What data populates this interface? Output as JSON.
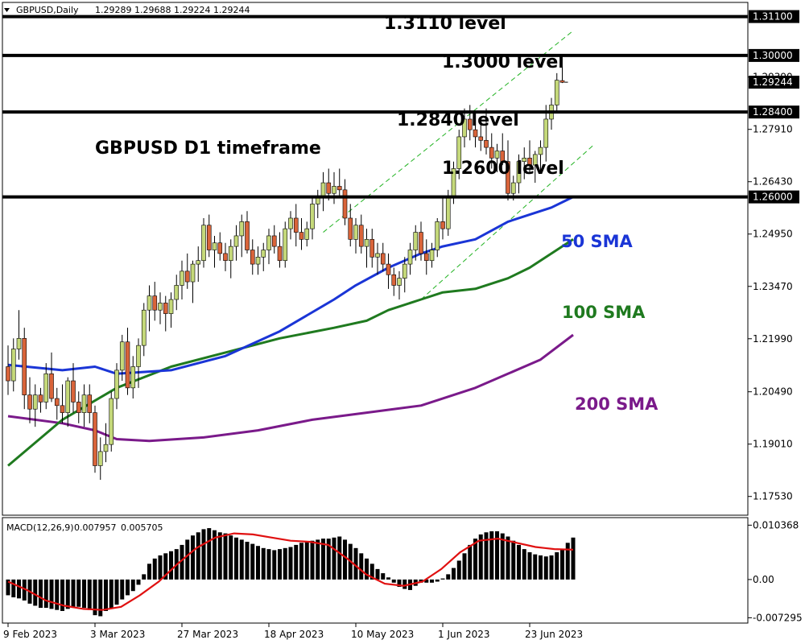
{
  "chart_header": {
    "symbol_label": "GBPUSD,Daily",
    "ohlc": "1.29289 1.29688 1.29224 1.29244"
  },
  "macd_header": {
    "label": "MACD(12,26,9)",
    "main": "0.007957",
    "signal": "0.005705"
  },
  "annotations": {
    "title": "GBPUSD D1 timeframe",
    "level_13110": "1.3110 level",
    "level_13000": "1.3000 level",
    "level_12840": "1.2840 level",
    "level_12600": "1.2600 level",
    "sma50": "50 SMA",
    "sma100": "100 SMA",
    "sma200": "200 SMA"
  },
  "colors": {
    "bull_candle": "#c5d97a",
    "bear_candle": "#d9643a",
    "sma50": "#1a35d6",
    "sma100": "#1f7a1f",
    "sma200": "#7a1a8a",
    "macd_signal": "#e01010",
    "channel": "#22b322"
  },
  "chart_data": {
    "type": "candlestick",
    "price_axis": {
      "ylim": [
        1.17,
        1.315
      ],
      "ticks": [
        "1.17530",
        "1.19010",
        "1.20490",
        "1.21990",
        "1.23470",
        "1.24950",
        "1.26430",
        "1.27910",
        "1.29390"
      ]
    },
    "level_badges": [
      "1.31100",
      "1.30000",
      "1.29244",
      "1.28400",
      "1.26000"
    ],
    "horizontal_levels": [
      1.311,
      1.3,
      1.284,
      1.26
    ],
    "current_price": 1.29244,
    "x_ticks": [
      {
        "label": "9 Feb 2023",
        "i": 0
      },
      {
        "label": "3 Mar 2023",
        "i": 16
      },
      {
        "label": "27 Mar 2023",
        "i": 32
      },
      {
        "label": "18 Apr 2023",
        "i": 48
      },
      {
        "label": "10 May 2023",
        "i": 64
      },
      {
        "label": "1 Jun 2023",
        "i": 80
      },
      {
        "label": "23 Jun 2023",
        "i": 96
      }
    ],
    "candles": [
      [
        1.212,
        1.218,
        1.204,
        1.208
      ],
      [
        1.208,
        1.22,
        1.205,
        1.217
      ],
      [
        1.217,
        1.228,
        1.214,
        1.22
      ],
      [
        1.22,
        1.223,
        1.2,
        1.204
      ],
      [
        1.204,
        1.209,
        1.196,
        1.2
      ],
      [
        1.2,
        1.207,
        1.195,
        1.204
      ],
      [
        1.204,
        1.206,
        1.199,
        1.202
      ],
      [
        1.202,
        1.213,
        1.2,
        1.21
      ],
      [
        1.21,
        1.216,
        1.202,
        1.203
      ],
      [
        1.203,
        1.206,
        1.197,
        1.201
      ],
      [
        1.201,
        1.207,
        1.196,
        1.199
      ],
      [
        1.199,
        1.209,
        1.195,
        1.208
      ],
      [
        1.208,
        1.213,
        1.199,
        1.202
      ],
      [
        1.202,
        1.205,
        1.196,
        1.199
      ],
      [
        1.199,
        1.207,
        1.195,
        1.204
      ],
      [
        1.204,
        1.207,
        1.196,
        1.199
      ],
      [
        1.199,
        1.201,
        1.182,
        1.184
      ],
      [
        1.184,
        1.192,
        1.18,
        1.188
      ],
      [
        1.188,
        1.196,
        1.185,
        1.19
      ],
      [
        1.19,
        1.205,
        1.188,
        1.203
      ],
      [
        1.203,
        1.213,
        1.2,
        1.211
      ],
      [
        1.211,
        1.221,
        1.208,
        1.219
      ],
      [
        1.219,
        1.223,
        1.204,
        1.206
      ],
      [
        1.206,
        1.215,
        1.203,
        1.212
      ],
      [
        1.212,
        1.22,
        1.206,
        1.218
      ],
      [
        1.218,
        1.23,
        1.215,
        1.228
      ],
      [
        1.228,
        1.235,
        1.222,
        1.232
      ],
      [
        1.232,
        1.236,
        1.225,
        1.228
      ],
      [
        1.228,
        1.233,
        1.224,
        1.23
      ],
      [
        1.23,
        1.232,
        1.222,
        1.227
      ],
      [
        1.227,
        1.233,
        1.223,
        1.231
      ],
      [
        1.231,
        1.238,
        1.228,
        1.235
      ],
      [
        1.235,
        1.242,
        1.231,
        1.239
      ],
      [
        1.239,
        1.244,
        1.234,
        1.236
      ],
      [
        1.236,
        1.242,
        1.23,
        1.241
      ],
      [
        1.241,
        1.246,
        1.236,
        1.242
      ],
      [
        1.242,
        1.254,
        1.24,
        1.252
      ],
      [
        1.252,
        1.255,
        1.243,
        1.245
      ],
      [
        1.245,
        1.249,
        1.24,
        1.247
      ],
      [
        1.247,
        1.25,
        1.242,
        1.244
      ],
      [
        1.244,
        1.247,
        1.239,
        1.242
      ],
      [
        1.242,
        1.248,
        1.237,
        1.246
      ],
      [
        1.246,
        1.252,
        1.242,
        1.249
      ],
      [
        1.249,
        1.255,
        1.243,
        1.253
      ],
      [
        1.253,
        1.256,
        1.244,
        1.245
      ],
      [
        1.245,
        1.248,
        1.238,
        1.241
      ],
      [
        1.241,
        1.246,
        1.238,
        1.243
      ],
      [
        1.243,
        1.247,
        1.239,
        1.245
      ],
      [
        1.245,
        1.251,
        1.241,
        1.249
      ],
      [
        1.249,
        1.252,
        1.244,
        1.246
      ],
      [
        1.246,
        1.25,
        1.24,
        1.242
      ],
      [
        1.242,
        1.253,
        1.24,
        1.251
      ],
      [
        1.251,
        1.256,
        1.248,
        1.254
      ],
      [
        1.254,
        1.258,
        1.246,
        1.25
      ],
      [
        1.25,
        1.254,
        1.245,
        1.248
      ],
      [
        1.248,
        1.253,
        1.246,
        1.251
      ],
      [
        1.251,
        1.26,
        1.248,
        1.258
      ],
      [
        1.258,
        1.262,
        1.254,
        1.26
      ],
      [
        1.26,
        1.267,
        1.256,
        1.264
      ],
      [
        1.264,
        1.268,
        1.259,
        1.261
      ],
      [
        1.261,
        1.267,
        1.258,
        1.263
      ],
      [
        1.263,
        1.268,
        1.26,
        1.262
      ],
      [
        1.262,
        1.265,
        1.252,
        1.254
      ],
      [
        1.254,
        1.258,
        1.246,
        1.248
      ],
      [
        1.248,
        1.254,
        1.244,
        1.252
      ],
      [
        1.252,
        1.255,
        1.244,
        1.246
      ],
      [
        1.246,
        1.251,
        1.24,
        1.248
      ],
      [
        1.248,
        1.251,
        1.24,
        1.243
      ],
      [
        1.243,
        1.247,
        1.238,
        1.244
      ],
      [
        1.244,
        1.247,
        1.239,
        1.241
      ],
      [
        1.241,
        1.244,
        1.234,
        1.238
      ],
      [
        1.238,
        1.24,
        1.232,
        1.235
      ],
      [
        1.235,
        1.239,
        1.231,
        1.237
      ],
      [
        1.237,
        1.243,
        1.233,
        1.241
      ],
      [
        1.241,
        1.247,
        1.238,
        1.245
      ],
      [
        1.245,
        1.252,
        1.242,
        1.25
      ],
      [
        1.25,
        1.253,
        1.242,
        1.244
      ],
      [
        1.244,
        1.248,
        1.238,
        1.242
      ],
      [
        1.242,
        1.247,
        1.24,
        1.245
      ],
      [
        1.245,
        1.254,
        1.243,
        1.253
      ],
      [
        1.253,
        1.26,
        1.248,
        1.251
      ],
      [
        1.251,
        1.262,
        1.249,
        1.26
      ],
      [
        1.26,
        1.27,
        1.258,
        1.268
      ],
      [
        1.268,
        1.279,
        1.265,
        1.277
      ],
      [
        1.277,
        1.285,
        1.274,
        1.282
      ],
      [
        1.282,
        1.286,
        1.276,
        1.279
      ],
      [
        1.279,
        1.282,
        1.274,
        1.277
      ],
      [
        1.277,
        1.281,
        1.273,
        1.276
      ],
      [
        1.276,
        1.285,
        1.272,
        1.274
      ],
      [
        1.274,
        1.278,
        1.268,
        1.271
      ],
      [
        1.271,
        1.275,
        1.267,
        1.273
      ],
      [
        1.273,
        1.278,
        1.269,
        1.27
      ],
      [
        1.27,
        1.276,
        1.259,
        1.261
      ],
      [
        1.261,
        1.266,
        1.259,
        1.264
      ],
      [
        1.264,
        1.272,
        1.261,
        1.27
      ],
      [
        1.27,
        1.274,
        1.265,
        1.271
      ],
      [
        1.271,
        1.276,
        1.267,
        1.269
      ],
      [
        1.269,
        1.273,
        1.264,
        1.272
      ],
      [
        1.272,
        1.276,
        1.267,
        1.274
      ],
      [
        1.274,
        1.286,
        1.27,
        1.282
      ],
      [
        1.282,
        1.288,
        1.279,
        1.286
      ],
      [
        1.286,
        1.295,
        1.284,
        1.293
      ],
      [
        1.2929,
        1.2969,
        1.2922,
        1.2924
      ]
    ],
    "sma50": [
      [
        0,
        1.2125
      ],
      [
        10,
        1.211
      ],
      [
        16,
        1.212
      ],
      [
        20,
        1.21
      ],
      [
        30,
        1.211
      ],
      [
        40,
        1.215
      ],
      [
        50,
        1.222
      ],
      [
        60,
        1.231
      ],
      [
        64,
        1.235
      ],
      [
        70,
        1.24
      ],
      [
        76,
        1.244
      ],
      [
        80,
        1.246
      ],
      [
        86,
        1.248
      ],
      [
        92,
        1.253
      ],
      [
        96,
        1.255
      ],
      [
        100,
        1.257
      ],
      [
        104,
        1.26
      ]
    ],
    "sma100": [
      [
        0,
        1.184
      ],
      [
        10,
        1.197
      ],
      [
        20,
        1.206
      ],
      [
        30,
        1.212
      ],
      [
        40,
        1.216
      ],
      [
        50,
        1.22
      ],
      [
        60,
        1.223
      ],
      [
        66,
        1.225
      ],
      [
        70,
        1.228
      ],
      [
        76,
        1.231
      ],
      [
        80,
        1.233
      ],
      [
        86,
        1.234
      ],
      [
        92,
        1.237
      ],
      [
        96,
        1.24
      ],
      [
        100,
        1.244
      ],
      [
        104,
        1.248
      ]
    ],
    "sma200": [
      [
        0,
        1.198
      ],
      [
        10,
        1.196
      ],
      [
        16,
        1.194
      ],
      [
        20,
        1.1915
      ],
      [
        26,
        1.191
      ],
      [
        36,
        1.192
      ],
      [
        46,
        1.194
      ],
      [
        56,
        1.197
      ],
      [
        66,
        1.199
      ],
      [
        76,
        1.201
      ],
      [
        86,
        1.206
      ],
      [
        92,
        1.21
      ],
      [
        98,
        1.214
      ],
      [
        104,
        1.221
      ]
    ],
    "channel_upper": [
      [
        58,
        1.25
      ],
      [
        104,
        1.307
      ]
    ],
    "channel_lower": [
      [
        76,
        1.231
      ],
      [
        108,
        1.275
      ]
    ],
    "macd": {
      "ylim": [
        -0.008,
        0.0115
      ],
      "ticks": [
        "0.010368",
        "0.00",
        "-0.007295"
      ],
      "histogram": [
        -0.003,
        -0.0034,
        -0.0036,
        -0.004,
        -0.0046,
        -0.005,
        -0.0054,
        -0.0054,
        -0.0056,
        -0.0058,
        -0.006,
        -0.0056,
        -0.0054,
        -0.0052,
        -0.0054,
        -0.0058,
        -0.0068,
        -0.007,
        -0.006,
        -0.0054,
        -0.0048,
        -0.0038,
        -0.003,
        -0.0022,
        -0.001,
        0.001,
        0.003,
        0.004,
        0.0046,
        0.005,
        0.0054,
        0.0058,
        0.0066,
        0.0076,
        0.0084,
        0.009,
        0.0096,
        0.0098,
        0.0094,
        0.009,
        0.0088,
        0.0084,
        0.008,
        0.0076,
        0.0072,
        0.0068,
        0.0064,
        0.006,
        0.0058,
        0.0056,
        0.0058,
        0.006,
        0.0062,
        0.0066,
        0.007,
        0.0072,
        0.0074,
        0.0076,
        0.0078,
        0.0078,
        0.008,
        0.0082,
        0.0076,
        0.0068,
        0.006,
        0.005,
        0.004,
        0.003,
        0.002,
        0.0012,
        0.0004,
        -0.0006,
        -0.0014,
        -0.0018,
        -0.002,
        -0.0012,
        -0.0006,
        -0.0006,
        -0.0006,
        -0.0004,
        0.0002,
        0.001,
        0.0022,
        0.0036,
        0.005,
        0.0066,
        0.0078,
        0.0086,
        0.009,
        0.0092,
        0.0092,
        0.0088,
        0.0082,
        0.0074,
        0.0066,
        0.0058,
        0.0052,
        0.0048,
        0.0046,
        0.0044,
        0.0046,
        0.0052,
        0.0058,
        0.007,
        0.008
      ],
      "signal": [
        [
          0,
          -0.0004
        ],
        [
          4,
          -0.002
        ],
        [
          8,
          -0.004
        ],
        [
          12,
          -0.005
        ],
        [
          16,
          -0.0056
        ],
        [
          20,
          -0.0058
        ],
        [
          24,
          -0.0052
        ],
        [
          28,
          -0.003
        ],
        [
          32,
          -0.0004
        ],
        [
          36,
          0.003
        ],
        [
          40,
          0.006
        ],
        [
          44,
          0.008
        ],
        [
          48,
          0.0088
        ],
        [
          52,
          0.0086
        ],
        [
          56,
          0.008
        ],
        [
          60,
          0.0074
        ],
        [
          64,
          0.0072
        ],
        [
          68,
          0.0066
        ],
        [
          72,
          0.004
        ],
        [
          76,
          0.001
        ],
        [
          80,
          -0.0008
        ],
        [
          84,
          -0.0012
        ],
        [
          88,
          -0.0004
        ],
        [
          92,
          0.002
        ],
        [
          96,
          0.0052
        ],
        [
          100,
          0.0074
        ],
        [
          104,
          0.0078
        ],
        [
          108,
          0.007
        ],
        [
          112,
          0.0062
        ],
        [
          114,
          0.006
        ],
        [
          116,
          0.0058
        ],
        [
          120,
          0.0057
        ]
      ]
    }
  }
}
